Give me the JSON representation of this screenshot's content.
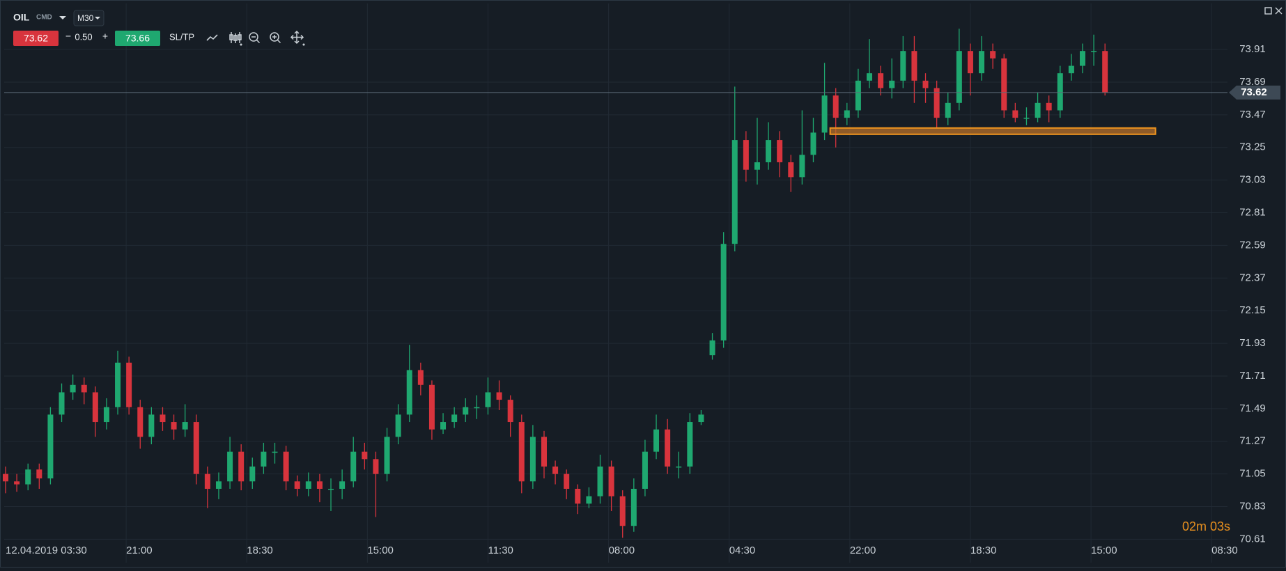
{
  "toolbar": {
    "symbol": "OIL",
    "group": "CMD",
    "timeframe": "M30",
    "sell_price": "73.62",
    "minus": "−",
    "volume": "0.50",
    "plus": "+",
    "buy_price": "73.66",
    "sltp": "SL/TP"
  },
  "timer": "02m 03s",
  "chart_data": {
    "type": "candlestick",
    "up_color": "#1fa870",
    "down_color": "#d8343d",
    "grid": true,
    "xlim": [
      0,
      440
    ],
    "xticks": [
      {
        "value": 0,
        "label": "12.04.2019 03:30"
      },
      {
        "value": 43,
        "label": "21:00"
      },
      {
        "value": 86,
        "label": "18:30"
      },
      {
        "value": 129,
        "label": "15:00"
      },
      {
        "value": 172,
        "label": "11:30"
      },
      {
        "value": 215,
        "label": "08:00"
      },
      {
        "value": 258,
        "label": "04:30"
      },
      {
        "value": 301,
        "label": "22:00"
      },
      {
        "value": 344,
        "label": "18:30"
      },
      {
        "value": 387,
        "label": "15:00"
      },
      {
        "value": 430,
        "label": "08:30"
      }
    ],
    "ylim": [
      70.49,
      74.22
    ],
    "yticks": [
      73.91,
      73.69,
      73.47,
      73.25,
      73.03,
      72.81,
      72.59,
      72.37,
      72.15,
      71.93,
      71.71,
      71.49,
      71.27,
      71.05,
      70.83,
      70.61
    ],
    "current_price": 73.62,
    "level": {
      "value": 73.36,
      "x": [
        294,
        410
      ]
    },
    "x": [
      0,
      4,
      8,
      12,
      16,
      20,
      24,
      28,
      32,
      36,
      40,
      44,
      48,
      52,
      56,
      60,
      64,
      68,
      72,
      76,
      80,
      84,
      88,
      92,
      96,
      100,
      104,
      108,
      112,
      116,
      120,
      124,
      128,
      132,
      136,
      140,
      144,
      148,
      152,
      156,
      160,
      164,
      168,
      172,
      176,
      180,
      184,
      188,
      192,
      196,
      200,
      204,
      208,
      212,
      216,
      220,
      224,
      228,
      232,
      236,
      240,
      244,
      248,
      252,
      256,
      260,
      264,
      268,
      272,
      276,
      280,
      284,
      288,
      292,
      296,
      300,
      304,
      308,
      312,
      316,
      320,
      324,
      328,
      332,
      336,
      340,
      344,
      348,
      352,
      356,
      360,
      364,
      368,
      372,
      376,
      380,
      384,
      388,
      392
    ],
    "open": [
      71.05,
      71.0,
      70.98,
      71.08,
      71.02,
      71.45,
      71.6,
      71.65,
      71.6,
      71.4,
      71.5,
      71.8,
      71.5,
      71.3,
      71.45,
      71.4,
      71.35,
      71.4,
      71.05,
      70.95,
      71.0,
      71.2,
      71.0,
      71.1,
      71.2,
      71.2,
      71.0,
      70.95,
      71.0,
      70.95,
      70.95,
      71.0,
      71.2,
      71.15,
      71.05,
      71.3,
      71.45,
      71.75,
      71.65,
      71.35,
      71.4,
      71.45,
      71.5,
      71.5,
      71.6,
      71.55,
      71.4,
      71.0,
      71.3,
      71.1,
      71.05,
      70.95,
      70.85,
      70.9,
      71.1,
      70.9,
      70.7,
      70.95,
      71.2,
      71.35,
      71.1,
      71.1,
      71.4,
      71.85,
      71.95,
      72.6,
      73.3,
      73.1,
      73.15,
      73.3,
      73.15,
      73.05,
      73.2,
      73.35,
      73.6,
      73.45,
      73.5,
      73.7,
      73.75,
      73.65,
      73.7,
      73.9,
      73.7,
      73.65,
      73.45,
      73.55,
      73.9,
      73.75,
      73.9,
      73.85,
      73.5,
      73.45,
      73.45,
      73.55,
      73.5,
      73.75,
      73.8,
      73.9,
      73.9
    ],
    "high": [
      71.1,
      71.05,
      71.12,
      71.12,
      71.5,
      71.66,
      71.72,
      71.7,
      71.64,
      71.56,
      71.88,
      71.84,
      71.55,
      71.5,
      71.5,
      71.45,
      71.52,
      71.45,
      71.1,
      71.06,
      71.3,
      71.25,
      71.16,
      71.26,
      71.26,
      71.24,
      71.04,
      71.06,
      71.05,
      71.02,
      71.08,
      71.3,
      71.26,
      71.2,
      71.36,
      71.52,
      71.92,
      71.8,
      71.68,
      71.46,
      71.5,
      71.56,
      71.58,
      71.7,
      71.68,
      71.58,
      71.45,
      71.38,
      71.34,
      71.14,
      71.08,
      70.98,
      70.96,
      71.18,
      71.14,
      70.94,
      71.02,
      71.28,
      71.45,
      71.42,
      71.2,
      71.46,
      71.48,
      72.0,
      72.68,
      73.66,
      73.36,
      73.45,
      73.42,
      73.36,
      73.2,
      73.5,
      73.45,
      73.82,
      73.65,
      73.55,
      73.78,
      73.98,
      73.8,
      73.85,
      74.0,
      74.0,
      73.75,
      73.7,
      73.62,
      74.05,
      73.95,
      74.0,
      73.95,
      73.88,
      73.55,
      73.52,
      73.62,
      73.6,
      73.8,
      73.88,
      73.95,
      74.01,
      73.95
    ],
    "low": [
      70.92,
      70.93,
      70.94,
      70.95,
      70.98,
      71.4,
      71.55,
      71.52,
      71.3,
      71.35,
      71.45,
      71.45,
      71.22,
      71.25,
      71.34,
      71.28,
      71.3,
      70.98,
      70.82,
      70.88,
      70.95,
      70.94,
      70.95,
      71.05,
      71.12,
      70.94,
      70.9,
      70.9,
      70.86,
      70.8,
      70.88,
      70.96,
      71.08,
      70.76,
      71.0,
      71.25,
      71.4,
      71.58,
      71.28,
      71.32,
      71.36,
      71.4,
      71.42,
      71.45,
      71.48,
      71.3,
      70.92,
      70.95,
      71.02,
      70.98,
      70.88,
      70.78,
      70.82,
      70.85,
      70.8,
      70.62,
      70.66,
      70.9,
      71.15,
      71.05,
      71.02,
      71.05,
      71.38,
      71.82,
      71.9,
      72.55,
      73.02,
      73.0,
      73.1,
      73.05,
      72.95,
      73.0,
      73.15,
      73.3,
      73.25,
      73.4,
      73.45,
      73.65,
      73.6,
      73.58,
      73.65,
      73.55,
      73.55,
      73.38,
      73.4,
      73.5,
      73.6,
      73.7,
      73.78,
      73.45,
      73.42,
      73.4,
      73.42,
      73.42,
      73.45,
      73.7,
      73.75,
      73.8,
      73.6
    ],
    "close": [
      71.0,
      70.98,
      71.08,
      71.02,
      71.45,
      71.6,
      71.65,
      71.6,
      71.4,
      71.5,
      71.8,
      71.5,
      71.3,
      71.45,
      71.4,
      71.35,
      71.4,
      71.05,
      70.95,
      71.0,
      71.2,
      71.0,
      71.1,
      71.2,
      71.2,
      71.0,
      70.95,
      71.0,
      70.95,
      70.95,
      71.0,
      71.2,
      71.15,
      71.05,
      71.3,
      71.45,
      71.75,
      71.65,
      71.35,
      71.4,
      71.45,
      71.5,
      71.5,
      71.6,
      71.55,
      71.4,
      71.0,
      71.3,
      71.1,
      71.05,
      70.95,
      70.85,
      70.9,
      71.1,
      70.9,
      70.7,
      70.95,
      71.2,
      71.35,
      71.1,
      71.1,
      71.4,
      71.45,
      71.95,
      72.6,
      73.3,
      73.1,
      73.15,
      73.3,
      73.15,
      73.05,
      73.2,
      73.35,
      73.6,
      73.45,
      73.5,
      73.7,
      73.75,
      73.65,
      73.7,
      73.9,
      73.7,
      73.65,
      73.45,
      73.55,
      73.9,
      73.75,
      73.9,
      73.85,
      73.5,
      73.45,
      73.45,
      73.55,
      73.5,
      73.75,
      73.8,
      73.9,
      73.9,
      73.62
    ]
  }
}
